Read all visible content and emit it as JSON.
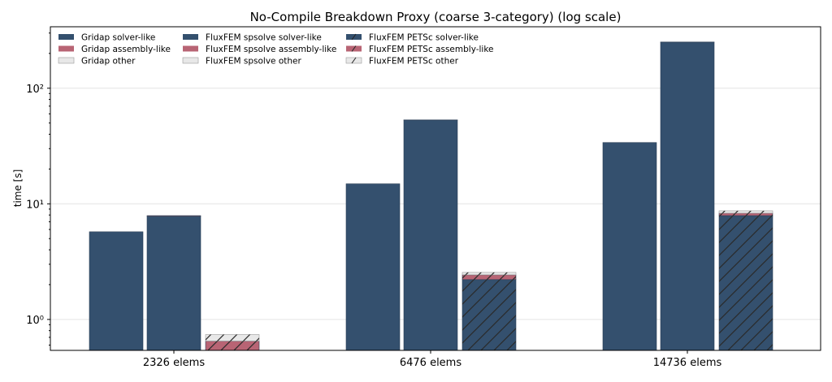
{
  "chart_data": {
    "type": "bar",
    "stacked": true,
    "title": "No-Compile Breakdown Proxy (coarse 3-category) (log scale)",
    "xlabel": "",
    "ylabel": "time [s]",
    "yscale": "log",
    "ylim": [
      0.54,
      340
    ],
    "yticks": [
      {
        "value": 1,
        "label": "10⁰"
      },
      {
        "value": 10,
        "label": "10¹"
      },
      {
        "value": 100,
        "label": "10²"
      }
    ],
    "grid": true,
    "legend_position": "top-left",
    "categories": [
      "2326 elems",
      "6476 elems",
      "14736 elems"
    ],
    "groups": [
      {
        "name": "Gridap",
        "hatch": false,
        "components": {
          "solver": [
            5.73,
            14.9,
            33.9
          ],
          "assembly": [
            0.0,
            0.0,
            0.0
          ],
          "other": [
            0.0,
            0.0,
            0.0
          ]
        }
      },
      {
        "name": "FluxFEM spsolve",
        "hatch": false,
        "components": {
          "solver": [
            7.8,
            53.0,
            250
          ],
          "assembly": [
            0.1,
            0.2,
            1.0
          ],
          "other": [
            0.0,
            0.0,
            0.0
          ]
        }
      },
      {
        "name": "FluxFEM PETSc",
        "hatch": true,
        "components": {
          "solver": [
            0.2,
            2.21,
            7.9
          ],
          "assembly": [
            0.45,
            0.22,
            0.4
          ],
          "other": [
            0.09,
            0.12,
            0.4
          ]
        }
      }
    ],
    "legend": [
      [
        "Gridap solver-like",
        "Gridap assembly-like",
        "Gridap other"
      ],
      [
        "FluxFEM spsolve solver-like",
        "FluxFEM spsolve assembly-like",
        "FluxFEM spsolve other"
      ],
      [
        "FluxFEM PETSc solver-like",
        "FluxFEM PETSc assembly-like",
        "FluxFEM PETSc other"
      ]
    ],
    "colors": {
      "solver": "#34506e",
      "assembly": "#b86474",
      "other": "#e8e8e8"
    }
  }
}
